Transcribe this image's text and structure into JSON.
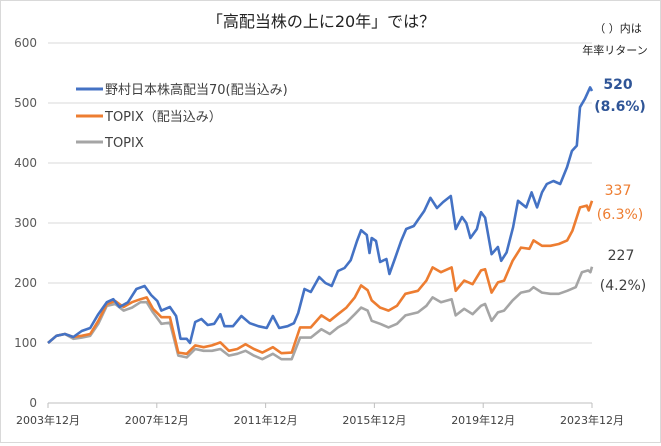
{
  "chart_data": {
    "type": "line",
    "title": "「高配当株の上に20年」では？",
    "note_lines": [
      "（ ）内は",
      "年率リターン"
    ],
    "x_unit": "years since 2003年12月",
    "xlim": [
      0,
      20
    ],
    "ylim": [
      0,
      600
    ],
    "yticks": [
      0,
      100,
      200,
      300,
      400,
      500,
      600
    ],
    "xticks": [
      {
        "x": 0,
        "label": "2003年12月"
      },
      {
        "x": 4,
        "label": "2007年12月"
      },
      {
        "x": 8,
        "label": "2011年12月"
      },
      {
        "x": 12,
        "label": "2015年12月"
      },
      {
        "x": 16,
        "label": "2019年12月"
      },
      {
        "x": 20,
        "label": "2023年12月"
      }
    ],
    "grid": true,
    "legend_position": "top-left",
    "series": [
      {
        "name": "野村日本株高配当70(配当込み)",
        "color": "#4472c4",
        "end_value": "520",
        "end_return": "(8.6%)",
        "x": [
          0,
          0.31,
          0.62,
          0.93,
          1.24,
          1.55,
          1.85,
          2.16,
          2.4,
          2.63,
          2.94,
          3.25,
          3.55,
          3.79,
          4.02,
          4.17,
          4.48,
          4.71,
          4.87,
          5.1,
          5.22,
          5.41,
          5.64,
          5.87,
          6.11,
          6.34,
          6.49,
          6.8,
          7.11,
          7.42,
          7.73,
          8.04,
          8.27,
          8.5,
          8.81,
          9.04,
          9.2,
          9.43,
          9.66,
          9.97,
          10.2,
          10.43,
          10.66,
          10.9,
          11.13,
          11.36,
          11.51,
          11.72,
          11.82,
          11.9,
          12.06,
          12.21,
          12.44,
          12.55,
          12.75,
          12.98,
          13.17,
          13.45,
          13.6,
          13.83,
          14.06,
          14.3,
          14.53,
          14.81,
          14.99,
          15.22,
          15.38,
          15.53,
          15.77,
          15.92,
          16.07,
          16.31,
          16.54,
          16.66,
          16.86,
          17.1,
          17.28,
          17.58,
          17.78,
          17.98,
          18.16,
          18.34,
          18.58,
          18.83,
          19.08,
          19.26,
          19.44,
          19.56,
          19.74,
          19.93,
          20
        ],
        "y": [
          100,
          112,
          115,
          110,
          120,
          125,
          148,
          168,
          173,
          160,
          168,
          190,
          195,
          180,
          170,
          154,
          160,
          145,
          107,
          107,
          100,
          135,
          140,
          130,
          132,
          148,
          128,
          128,
          145,
          133,
          128,
          125,
          145,
          125,
          128,
          133,
          150,
          190,
          185,
          210,
          200,
          195,
          220,
          225,
          238,
          270,
          288,
          280,
          250,
          275,
          270,
          235,
          240,
          215,
          240,
          270,
          290,
          295,
          305,
          320,
          342,
          325,
          335,
          345,
          290,
          310,
          300,
          275,
          290,
          318,
          309,
          248,
          260,
          237,
          251,
          293,
          337,
          326,
          351,
          326,
          351,
          365,
          370,
          365,
          393,
          420,
          429,
          493,
          507,
          526,
          520
        ]
      },
      {
        "name": "TOPIX（配当込み）",
        "color": "#ed7d31",
        "end_value": "337",
        "end_return": "(6.3%)",
        "x": [
          0,
          0.31,
          0.62,
          0.93,
          1.24,
          1.55,
          1.85,
          2.16,
          2.47,
          2.78,
          3.09,
          3.4,
          3.63,
          3.86,
          4.17,
          4.48,
          4.79,
          5.1,
          5.41,
          5.72,
          6.03,
          6.34,
          6.65,
          6.96,
          7.26,
          7.57,
          7.88,
          8.27,
          8.58,
          8.96,
          9.27,
          9.66,
          10.05,
          10.36,
          10.66,
          10.97,
          11.28,
          11.51,
          11.75,
          11.9,
          12.21,
          12.52,
          12.83,
          13.14,
          13.6,
          13.91,
          14.14,
          14.45,
          14.84,
          14.99,
          15.3,
          15.61,
          15.92,
          16.07,
          16.31,
          16.54,
          16.77,
          17.08,
          17.39,
          17.7,
          17.85,
          18.16,
          18.47,
          18.78,
          19.09,
          19.28,
          19.56,
          19.81,
          19.88,
          20
        ],
        "y": [
          100,
          112,
          115,
          110,
          112,
          115,
          137,
          165,
          170,
          160,
          168,
          173,
          176,
          157,
          143,
          143,
          84,
          82,
          96,
          93,
          96,
          101,
          87,
          90,
          98,
          90,
          84,
          93,
          83,
          84,
          126,
          126,
          146,
          137,
          148,
          159,
          176,
          196,
          188,
          171,
          159,
          154,
          162,
          182,
          187,
          204,
          226,
          218,
          226,
          187,
          204,
          198,
          221,
          223,
          184,
          201,
          204,
          237,
          259,
          257,
          271,
          262,
          262,
          265,
          271,
          287,
          326,
          329,
          321,
          337
        ]
      },
      {
        "name": "TOPIX",
        "color": "#a5a5a5",
        "end_value": "227",
        "end_return": "(4.2%)",
        "x": [
          0,
          0.31,
          0.62,
          0.93,
          1.24,
          1.55,
          1.85,
          2.16,
          2.47,
          2.78,
          3.09,
          3.4,
          3.63,
          3.86,
          4.17,
          4.48,
          4.79,
          5.1,
          5.41,
          5.72,
          6.03,
          6.34,
          6.65,
          6.96,
          7.26,
          7.57,
          7.88,
          8.27,
          8.58,
          8.96,
          9.27,
          9.66,
          10.05,
          10.36,
          10.66,
          10.97,
          11.28,
          11.51,
          11.75,
          11.9,
          12.21,
          12.52,
          12.83,
          13.14,
          13.6,
          13.91,
          14.14,
          14.45,
          14.84,
          14.99,
          15.3,
          15.61,
          15.92,
          16.07,
          16.31,
          16.54,
          16.77,
          17.08,
          17.39,
          17.7,
          17.85,
          18.16,
          18.47,
          18.78,
          19.09,
          19.4,
          19.63,
          19.86,
          19.94,
          20
        ],
        "y": [
          100,
          112,
          115,
          107,
          109,
          112,
          132,
          162,
          165,
          154,
          159,
          168,
          168,
          151,
          132,
          134,
          79,
          76,
          90,
          87,
          87,
          90,
          79,
          82,
          87,
          79,
          73,
          82,
          73,
          73,
          109,
          109,
          123,
          115,
          126,
          134,
          148,
          159,
          154,
          137,
          132,
          126,
          132,
          146,
          151,
          162,
          176,
          168,
          173,
          146,
          157,
          148,
          162,
          165,
          137,
          151,
          154,
          171,
          184,
          187,
          193,
          184,
          182,
          182,
          187,
          193,
          218,
          221,
          218,
          227
        ]
      }
    ]
  }
}
